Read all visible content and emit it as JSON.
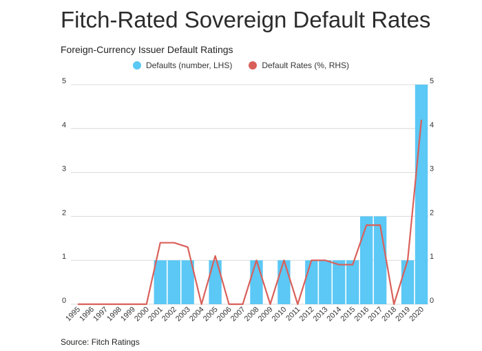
{
  "chart_data": {
    "type": "bar",
    "title": "Fitch-Rated Sovereign Default Rates",
    "subtitle": "Foreign-Currency Issuer Default Ratings",
    "source": "Source: Fitch Ratings",
    "categories": [
      "1995",
      "1996",
      "1997",
      "1998",
      "1999",
      "2000",
      "2001",
      "2002",
      "2003",
      "2004",
      "2005",
      "2006",
      "2007",
      "2008",
      "2009",
      "2010",
      "2011",
      "2012",
      "2013",
      "2014",
      "2015",
      "2016",
      "2017",
      "2018",
      "2019",
      "2020"
    ],
    "series": [
      {
        "name": "Defaults (number, LHS)",
        "type": "bar",
        "axis": "left",
        "color": "#5bc8f5",
        "values": [
          0,
          0,
          0,
          0,
          0,
          0,
          1,
          1,
          1,
          0,
          1,
          0,
          0,
          1,
          0,
          1,
          0,
          1,
          1,
          1,
          1,
          2,
          2,
          0,
          1,
          5
        ]
      },
      {
        "name": "Default Rates (%, RHS)",
        "type": "line",
        "axis": "right",
        "color": "#d9605a",
        "values": [
          0,
          0,
          0,
          0,
          0,
          0,
          1.4,
          1.4,
          1.3,
          0,
          1.1,
          0,
          0,
          1.0,
          0,
          1.0,
          0,
          1.0,
          1.0,
          0.9,
          0.9,
          1.8,
          1.8,
          0,
          1.0,
          4.2
        ]
      }
    ],
    "yticks_left": [
      "0",
      "1",
      "2",
      "3",
      "4",
      "5"
    ],
    "yticks_right": [
      "0",
      "1",
      "2",
      "3",
      "4",
      "5"
    ],
    "ylim_left": [
      0,
      5
    ],
    "ylim_right": [
      0,
      5
    ],
    "grid": true,
    "legend_position": "top-center"
  }
}
